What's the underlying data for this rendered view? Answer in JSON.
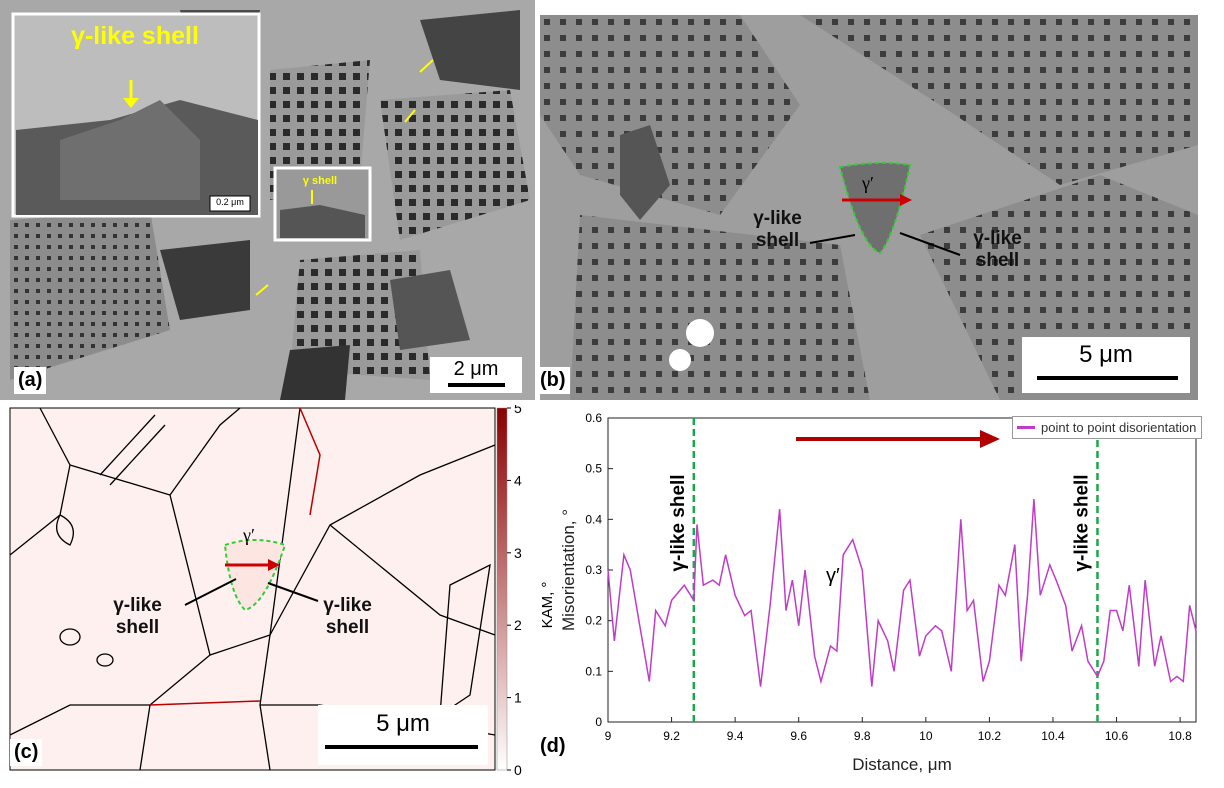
{
  "panels": {
    "a": {
      "label": "(a)",
      "inset_title": "γ-like shell",
      "inset_scale": "0.2 μm",
      "box_label": "γ shell",
      "scale": "2 μm"
    },
    "b": {
      "label": "(b)",
      "phase": "γ′",
      "left_label": "γ-like shell",
      "right_label": "γ-like shell",
      "scale": "5 μm"
    },
    "c": {
      "label": "(c)",
      "phase": "γ′",
      "left_label": "γ-like shell",
      "right_label": "γ-like shell",
      "scale": "5 μm",
      "colorbar": {
        "label": "KAM, °",
        "lim": [
          0,
          5
        ],
        "ticks": [
          0,
          1,
          2,
          3,
          4,
          5
        ]
      }
    }
  },
  "chart_data": {
    "type": "line",
    "label": "(d)",
    "xlabel": "Distance, μm",
    "ylabel": "Misorientation, °",
    "xlim": [
      9,
      10.85
    ],
    "xticks": [
      9,
      9.2,
      9.4,
      9.6,
      9.8,
      10,
      10.2,
      10.4,
      10.6,
      10.8
    ],
    "ylim": [
      0,
      0.6
    ],
    "yticks": [
      0,
      0.1,
      0.2,
      0.3,
      0.4,
      0.5,
      0.6
    ],
    "annotation": "γ′",
    "boundaries": [
      {
        "x": 9.27,
        "label": "γ-like shell"
      },
      {
        "x": 10.54,
        "label": "γ-like shell"
      }
    ],
    "legend": "upper right",
    "x": [
      9.0,
      9.02,
      9.05,
      9.07,
      9.13,
      9.15,
      9.18,
      9.2,
      9.24,
      9.27,
      9.28,
      9.3,
      9.33,
      9.35,
      9.37,
      9.4,
      9.43,
      9.45,
      9.48,
      9.51,
      9.54,
      9.56,
      9.58,
      9.6,
      9.62,
      9.65,
      9.67,
      9.7,
      9.72,
      9.74,
      9.77,
      9.8,
      9.83,
      9.85,
      9.88,
      9.9,
      9.93,
      9.95,
      9.98,
      10.0,
      10.03,
      10.05,
      10.08,
      10.11,
      10.13,
      10.15,
      10.18,
      10.2,
      10.23,
      10.25,
      10.28,
      10.3,
      10.32,
      10.34,
      10.36,
      10.39,
      10.41,
      10.44,
      10.46,
      10.49,
      10.51,
      10.54,
      10.56,
      10.58,
      10.6,
      10.62,
      10.64,
      10.67,
      10.69,
      10.72,
      10.74,
      10.77,
      10.79,
      10.81,
      10.83,
      10.85
    ],
    "series": [
      {
        "name": "point to point disorientation",
        "color": "#c03cc8",
        "values": [
          0.3,
          0.16,
          0.33,
          0.3,
          0.08,
          0.22,
          0.19,
          0.24,
          0.27,
          0.24,
          0.39,
          0.27,
          0.28,
          0.27,
          0.33,
          0.25,
          0.21,
          0.22,
          0.07,
          0.23,
          0.42,
          0.22,
          0.28,
          0.19,
          0.3,
          0.13,
          0.08,
          0.15,
          0.14,
          0.33,
          0.36,
          0.3,
          0.07,
          0.2,
          0.16,
          0.1,
          0.26,
          0.28,
          0.13,
          0.17,
          0.19,
          0.18,
          0.1,
          0.4,
          0.22,
          0.24,
          0.08,
          0.12,
          0.27,
          0.25,
          0.35,
          0.12,
          0.25,
          0.44,
          0.25,
          0.31,
          0.28,
          0.23,
          0.14,
          0.19,
          0.12,
          0.09,
          0.12,
          0.22,
          0.22,
          0.18,
          0.27,
          0.11,
          0.28,
          0.11,
          0.17,
          0.08,
          0.09,
          0.08,
          0.23,
          0.18
        ]
      }
    ]
  }
}
